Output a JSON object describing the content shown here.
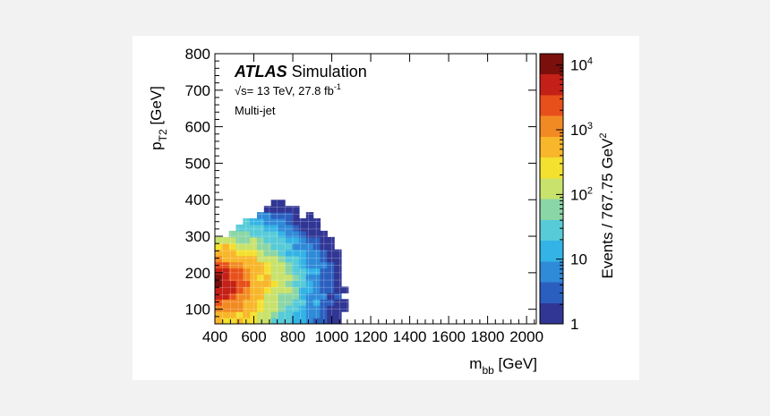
{
  "chart_data": {
    "type": "heatmap",
    "experiment": "ATLAS",
    "experiment_suffix": "Simulation",
    "energy_text": "= 13 TeV, 27.8 fb",
    "sqrt_s_symbol": "√s",
    "lumi_exponent": "-1",
    "sample_label": "Multi-jet",
    "xlabel_main": "m",
    "xlabel_sub": "bb",
    "xlabel_unit": " [GeV]",
    "ylabel_main": "p",
    "ylabel_sub": "T2",
    "ylabel_unit": " [GeV]",
    "zlabel": "Events / 767.75 GeV",
    "zlabel_exponent": "2",
    "xlim": [
      400,
      2050
    ],
    "ylim": [
      60,
      800
    ],
    "zlim": [
      1,
      15000
    ],
    "zscale": "log",
    "grid": true,
    "x_ticks": [
      "400",
      "600",
      "800",
      "1000",
      "1200",
      "1400",
      "1600",
      "1800",
      "2000"
    ],
    "y_ticks": [
      "100",
      "200",
      "300",
      "400",
      "500",
      "600",
      "700",
      "800"
    ],
    "z_ticks": [
      {
        "value": 1,
        "label": "1"
      },
      {
        "value": 10,
        "label": "10"
      },
      {
        "value": 100,
        "label": "10",
        "exp": "2"
      },
      {
        "value": 1000,
        "label": "10",
        "exp": "3"
      },
      {
        "value": 10000,
        "label": "10",
        "exp": "4"
      }
    ],
    "peak": {
      "x": 420,
      "y": 170,
      "z": 12000
    },
    "colormap": [
      "#313695",
      "#2b5fbf",
      "#2f8ad8",
      "#34b3e6",
      "#57cbd8",
      "#8bd6a6",
      "#c8e26c",
      "#f3e02f",
      "#f8b62a",
      "#f28a23",
      "#e8501b",
      "#c42017",
      "#7a0f0c"
    ]
  }
}
